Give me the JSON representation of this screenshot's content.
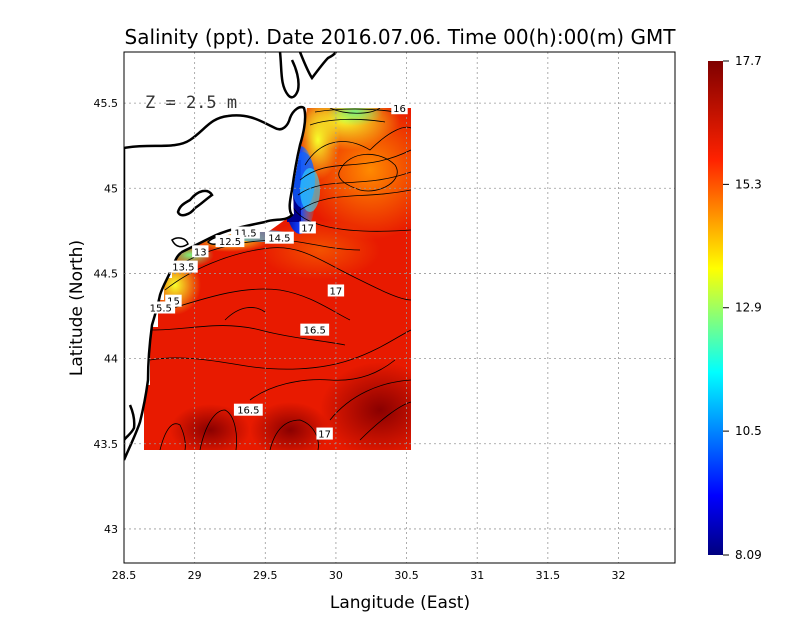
{
  "chart_data": {
    "type": "heatmap",
    "title": "Salinity (ppt). Date 2016.07.06. Time 00(h):00(m) GMT",
    "xlabel": "Langitude (East)",
    "ylabel": "Latitude (North)",
    "annotation": "Z = 2.5 m",
    "xlim": [
      28.5,
      32.4
    ],
    "ylim": [
      42.8,
      45.8
    ],
    "x_ticks": [
      28.5,
      29,
      29.5,
      30,
      30.5,
      31,
      31.5,
      32
    ],
    "x_tick_labels": [
      "28.5",
      "29",
      "29.5",
      "30",
      "30.5",
      "31",
      "31.5",
      "32"
    ],
    "y_ticks": [
      43,
      43.5,
      44,
      44.5,
      45,
      45.5
    ],
    "y_tick_labels": [
      "43",
      "43.5",
      "44",
      "44.5",
      "45",
      "45.5"
    ],
    "grid": true,
    "colorbar": {
      "min": 8.09,
      "max": 17.7,
      "tick_labels": [
        "17.7",
        "15.3",
        "12.9",
        "10.5",
        "8.09"
      ],
      "tick_values": [
        17.7,
        15.3,
        12.9,
        10.5,
        8.09
      ],
      "colormap": [
        "#00007f",
        "#0000ff",
        "#00ffff",
        "#ffff00",
        "#ff0000",
        "#7f0000"
      ]
    },
    "contour_labels": [
      {
        "text": "16",
        "lon": 30.45,
        "lat": 45.47,
        "value": 16
      },
      {
        "text": "17",
        "lon": 29.8,
        "lat": 44.77,
        "value": 17
      },
      {
        "text": "11.5",
        "lon": 29.36,
        "lat": 44.74,
        "value": 11.5
      },
      {
        "text": "14.5",
        "lon": 29.6,
        "lat": 44.71,
        "value": 14.5
      },
      {
        "text": "12.5",
        "lon": 29.25,
        "lat": 44.69,
        "value": 12.5
      },
      {
        "text": "13",
        "lon": 29.04,
        "lat": 44.63,
        "value": 13
      },
      {
        "text": "13.5",
        "lon": 28.92,
        "lat": 44.54,
        "value": 13.5
      },
      {
        "text": "17",
        "lon": 30.0,
        "lat": 44.4,
        "value": 17
      },
      {
        "text": "15",
        "lon": 28.85,
        "lat": 44.34,
        "value": 15
      },
      {
        "text": "15.5",
        "lon": 28.76,
        "lat": 44.3,
        "value": 15.5
      },
      {
        "text": "16.5",
        "lon": 29.85,
        "lat": 44.17,
        "value": 16.5
      },
      {
        "text": "16.5",
        "lon": 29.38,
        "lat": 43.7,
        "value": 16.5
      },
      {
        "text": "17",
        "lon": 29.92,
        "lat": 43.56,
        "value": 17
      }
    ],
    "field_samples": [
      {
        "lon": 30.15,
        "lat": 45.35,
        "value": 15.3
      },
      {
        "lon": 29.95,
        "lat": 45.45,
        "value": 13.8
      },
      {
        "lon": 29.72,
        "lat": 45.0,
        "value": 9.0
      },
      {
        "lon": 29.25,
        "lat": 44.72,
        "value": 11.5
      },
      {
        "lon": 28.88,
        "lat": 44.48,
        "value": 13.5
      },
      {
        "lon": 29.5,
        "lat": 44.25,
        "value": 16.5
      },
      {
        "lon": 30.4,
        "lat": 43.8,
        "value": 17.7
      },
      {
        "lon": 29.2,
        "lat": 43.9,
        "value": 16.8
      }
    ]
  }
}
